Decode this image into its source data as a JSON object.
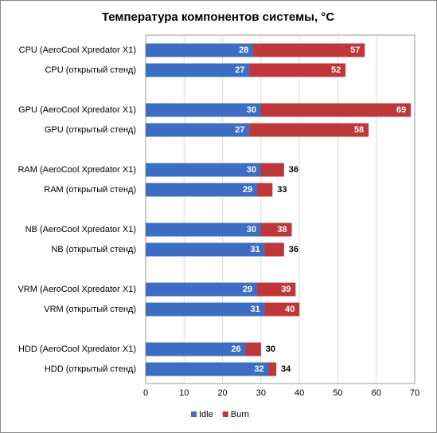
{
  "chart_data": {
    "type": "bar",
    "orientation": "horizontal",
    "title": "Температура компонентов системы, °C",
    "categories": [
      "CPU (AeroCool Xpredator X1)",
      "CPU (открытый стенд)",
      "GPU (AeroCool Xpredator X1)",
      "GPU (открытый стенд)",
      "RAM (AeroCool Xpredator X1)",
      "RAM (открытый стенд)",
      "NB (AeroCool Xpredator X1)",
      "NB (открытый стенд)",
      "VRM (AeroCool Xpredator X1)",
      "VRM (открытый стенд)",
      "HDD (AeroCool Xpredator X1)",
      "HDD (открытый стенд)"
    ],
    "series": [
      {
        "name": "Idle",
        "color": "#3d6ec4",
        "values": [
          28,
          27,
          30,
          27,
          30,
          29,
          30,
          31,
          29,
          31,
          26,
          32
        ]
      },
      {
        "name": "Burn",
        "color": "#c0373a",
        "values": [
          57,
          52,
          69,
          58,
          36,
          33,
          38,
          36,
          39,
          40,
          30,
          34
        ]
      }
    ],
    "xlim": [
      0,
      70
    ],
    "xticks": [
      0,
      10,
      20,
      30,
      40,
      50,
      60,
      70
    ],
    "grid": true,
    "legend": "bottom"
  }
}
